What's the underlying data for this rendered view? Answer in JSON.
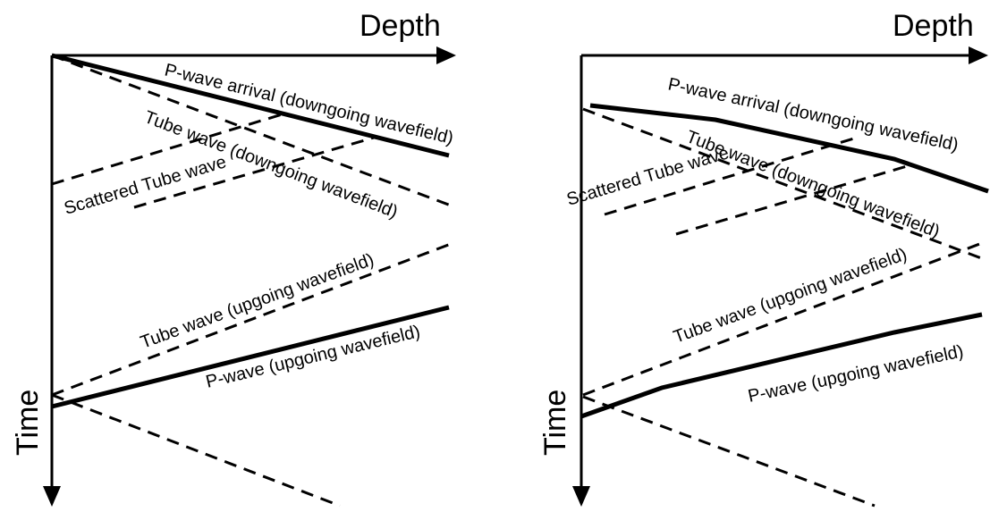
{
  "colors": {
    "line": "#000000",
    "background": "#ffffff"
  },
  "left_panel": {
    "depth_label": "Depth",
    "time_label": "Time",
    "labels": {
      "p_down": "P-wave arrival (downgoing wavefield)",
      "tube_down": "Tube wave (downgoing wavefield)",
      "scattered": "Scattered Tube wave",
      "tube_up": "Tube wave (upgoing wavefield)",
      "p_up": "P-wave (upgoing wavefield)"
    }
  },
  "right_panel": {
    "depth_label": "Depth",
    "time_label": "Time",
    "labels": {
      "p_down": "P-wave arrival (downgoing wavefield)",
      "tube_down": "Tube wave (downgoing wavefield)",
      "scattered": "Scattered Tube wave",
      "tube_up": "Tube wave (upgoing wavefield)",
      "p_up": "P-wave (upgoing wavefield)"
    }
  }
}
